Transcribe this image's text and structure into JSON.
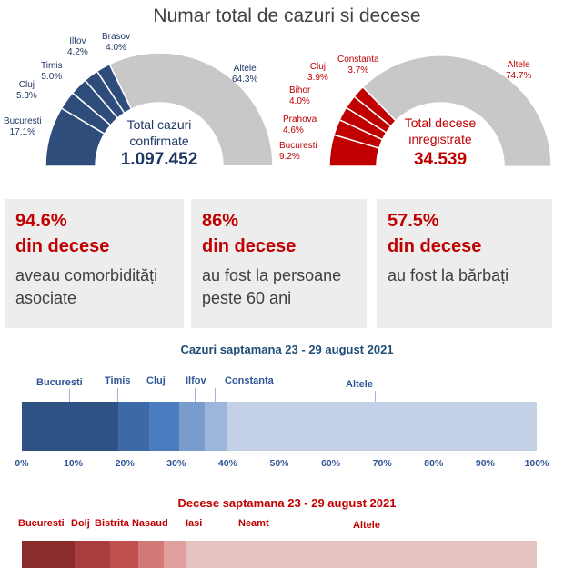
{
  "title": "Numar total de cazuri si decese",
  "cases_gauge": {
    "caption_line1": "Total cazuri",
    "caption_line2": "confirmate",
    "total": "1.097.452",
    "segments": [
      {
        "name": "Bucuresti",
        "pct": 17.1,
        "pct_label": "17.1%",
        "color": "#2e4d7b"
      },
      {
        "name": "Cluj",
        "pct": 5.3,
        "pct_label": "5.3%",
        "color": "#2e4d7b"
      },
      {
        "name": "Timis",
        "pct": 5.0,
        "pct_label": "5.0%",
        "color": "#2e4d7b"
      },
      {
        "name": "Ilfov",
        "pct": 4.2,
        "pct_label": "4.2%",
        "color": "#2e4d7b"
      },
      {
        "name": "Brasov",
        "pct": 4.0,
        "pct_label": "4.0%",
        "color": "#2e4d7b"
      },
      {
        "name": "Altele",
        "pct": 64.3,
        "pct_label": "64.3%",
        "color": "#c8c8c8"
      }
    ]
  },
  "deaths_gauge": {
    "caption_line1": "Total decese",
    "caption_line2": "inregistrate",
    "total": "34.539",
    "segments": [
      {
        "name": "Bucuresti",
        "pct": 9.2,
        "pct_label": "9.2%",
        "color": "#c00000"
      },
      {
        "name": "Prahova",
        "pct": 4.6,
        "pct_label": "4.6%",
        "color": "#c00000"
      },
      {
        "name": "Bihor",
        "pct": 4.0,
        "pct_label": "4.0%",
        "color": "#c00000"
      },
      {
        "name": "Cluj",
        "pct": 3.9,
        "pct_label": "3.9%",
        "color": "#c00000"
      },
      {
        "name": "Constanta",
        "pct": 3.7,
        "pct_label": "3.7%",
        "color": "#c00000"
      },
      {
        "name": "Altele",
        "pct": 74.7,
        "pct_label": "74.7%",
        "color": "#c8c8c8"
      }
    ]
  },
  "stats": [
    {
      "pct": "94.6%",
      "sub": "din decese",
      "desc_line1": "aveau comorbidități",
      "desc_line2": "asociate"
    },
    {
      "pct": "86%",
      "sub": "din decese",
      "desc_line1": "au fost la persoane",
      "desc_line2": "peste 60 ani"
    },
    {
      "pct": "57.5%",
      "sub": "din decese",
      "desc_line1": "au fost la bărbați",
      "desc_line2": ""
    }
  ],
  "chart_data": [
    {
      "type": "bar",
      "orientation": "horizontal-stacked",
      "title": "Cazuri saptamana 23 - 29 august 2021",
      "xlim": [
        0,
        100
      ],
      "xticks": [
        "0%",
        "10%",
        "20%",
        "30%",
        "40%",
        "50%",
        "60%",
        "70%",
        "80%",
        "90%",
        "100%"
      ],
      "series": [
        {
          "name": "Bucuresti",
          "value": 18.8,
          "color": "#2e5283"
        },
        {
          "name": "Timis",
          "value": 6.0,
          "color": "#3d6aa7"
        },
        {
          "name": "Cluj",
          "value": 5.8,
          "color": "#4a7dbf"
        },
        {
          "name": "Ilfov",
          "value": 5.0,
          "color": "#7a9ccd"
        },
        {
          "name": "Constanta",
          "value": 4.1,
          "color": "#9db5da"
        },
        {
          "name": "Altele",
          "value": 60.3,
          "color": "#c3d0e6"
        }
      ]
    },
    {
      "type": "bar",
      "orientation": "horizontal-stacked",
      "title": "Decese saptamana 23 - 29 august 2021",
      "xlim": [
        0,
        100
      ],
      "series": [
        {
          "name": "Bucuresti",
          "value": 10.2,
          "color": "#8b2b2b"
        },
        {
          "name": "Dolj",
          "value": 7.0,
          "color": "#a93c3c"
        },
        {
          "name": "Bistrita Nasaud",
          "value": 5.4,
          "color": "#c0504d"
        },
        {
          "name": "Iasi",
          "value": 4.9,
          "color": "#d27a77"
        },
        {
          "name": "Neamt",
          "value": 4.5,
          "color": "#e0a09d"
        },
        {
          "name": "Altele",
          "value": 68.0,
          "color": "#e6c3c3"
        }
      ]
    }
  ]
}
